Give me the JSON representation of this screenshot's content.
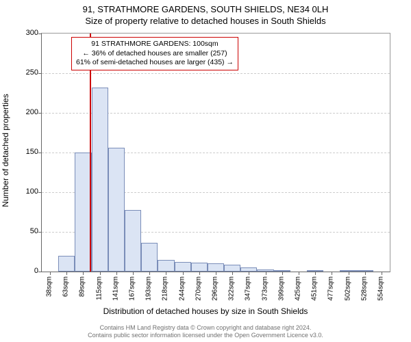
{
  "title_line1": "91, STRATHMORE GARDENS, SOUTH SHIELDS, NE34 0LH",
  "title_line2": "Size of property relative to detached houses in South Shields",
  "ylabel": "Number of detached properties",
  "xlabel": "Distribution of detached houses by size in South Shields",
  "chart": {
    "type": "histogram",
    "background_color": "#ffffff",
    "grid_color": "#cccccc",
    "axis_color": "#666666",
    "bar_fill": "#dbe4f4",
    "bar_stroke": "#7a8db8",
    "ylim": [
      0,
      300
    ],
    "yticks": [
      0,
      50,
      100,
      150,
      200,
      250,
      300
    ],
    "xtick_labels": [
      "38sqm",
      "63sqm",
      "89sqm",
      "115sqm",
      "141sqm",
      "167sqm",
      "193sqm",
      "218sqm",
      "244sqm",
      "270sqm",
      "296sqm",
      "322sqm",
      "347sqm",
      "373sqm",
      "399sqm",
      "425sqm",
      "451sqm",
      "477sqm",
      "502sqm",
      "528sqm",
      "554sqm"
    ],
    "values": [
      0,
      20,
      150,
      232,
      156,
      78,
      36,
      15,
      12,
      11,
      10,
      9,
      5,
      3,
      2,
      0,
      2,
      0,
      2,
      1,
      0
    ],
    "marker_line_index": 2.9,
    "marker_color": "#cc0000"
  },
  "annotation": {
    "line1": "91 STRATHMORE GARDENS: 100sqm",
    "line2": "← 36% of detached houses are smaller (257)",
    "line3": "61% of semi-detached houses are larger (435) →",
    "border_color": "#cc0000"
  },
  "footer": {
    "line1": "Contains HM Land Registry data © Crown copyright and database right 2024.",
    "line2": "Contains public sector information licensed under the Open Government Licence v3.0."
  }
}
